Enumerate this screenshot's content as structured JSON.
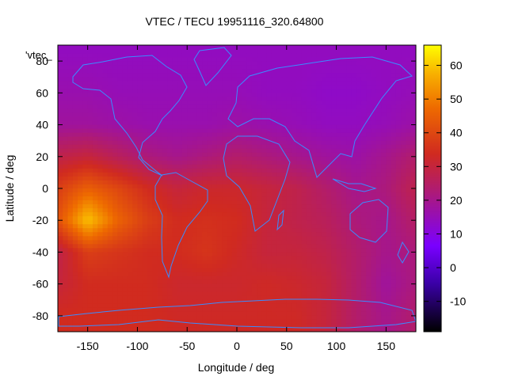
{
  "chart_data": {
    "type": "heatmap",
    "title": "VTEC / TECU 19951116_320.64800",
    "xlabel": "Longitude / deg",
    "ylabel": "Latitude / deg",
    "plot_key": "'vtec_",
    "xlim": [
      -180,
      180
    ],
    "ylim": [
      -90,
      90
    ],
    "x_ticks": [
      -150,
      -100,
      -50,
      0,
      50,
      100,
      150
    ],
    "y_ticks": [
      -80,
      -60,
      -40,
      -20,
      0,
      20,
      40,
      60,
      80
    ],
    "colorbar": {
      "range": [
        -19,
        66
      ],
      "ticks": [
        -10,
        0,
        10,
        20,
        30,
        40,
        50,
        60
      ],
      "palette": [
        "#000000",
        "#6a00ff",
        "#cc2b3a",
        "#ee6a00",
        "#ffff00"
      ]
    },
    "field_samples": {
      "latitudes": [
        85,
        60,
        40,
        20,
        0,
        -20,
        -40,
        -60,
        -80
      ],
      "longitudes": [
        -180,
        -150,
        -120,
        -90,
        -60,
        -30,
        0,
        30,
        60,
        90,
        120,
        150,
        180
      ],
      "values": [
        [
          14,
          14,
          14,
          14,
          14,
          14,
          14,
          14,
          14,
          14,
          14,
          14,
          14
        ],
        [
          16,
          16,
          15,
          15,
          15,
          15,
          15,
          14,
          14,
          13,
          13,
          14,
          15
        ],
        [
          18,
          18,
          17,
          16,
          16,
          16,
          17,
          16,
          15,
          14,
          14,
          15,
          17
        ],
        [
          28,
          30,
          26,
          22,
          20,
          22,
          24,
          22,
          20,
          18,
          17,
          20,
          24
        ],
        [
          38,
          45,
          40,
          34,
          30,
          32,
          32,
          30,
          28,
          24,
          20,
          22,
          28
        ],
        [
          42,
          60,
          46,
          38,
          34,
          35,
          34,
          30,
          28,
          26,
          22,
          20,
          25
        ],
        [
          28,
          38,
          36,
          34,
          34,
          36,
          33,
          30,
          30,
          28,
          24,
          20,
          22
        ],
        [
          30,
          34,
          34,
          34,
          32,
          32,
          32,
          33,
          32,
          30,
          24,
          18,
          22
        ],
        [
          34,
          34,
          34,
          34,
          33,
          33,
          33,
          33,
          33,
          30,
          24,
          20,
          24
        ]
      ]
    },
    "legend_position": "top-left",
    "grid": false
  }
}
